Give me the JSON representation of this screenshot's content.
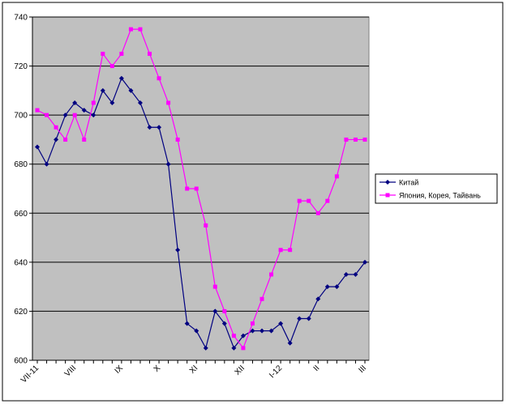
{
  "chart_data": {
    "type": "line",
    "categories": [
      "VII-11",
      null,
      null,
      null,
      "VIII",
      null,
      null,
      null,
      null,
      "IX",
      null,
      null,
      null,
      "X",
      null,
      null,
      null,
      "XI",
      null,
      null,
      null,
      null,
      "XII",
      null,
      null,
      null,
      "I-12",
      null,
      null,
      null,
      "II",
      null,
      null,
      null,
      null,
      "III"
    ],
    "series": [
      {
        "name": "Китай",
        "color": "#000080",
        "marker": "diamond",
        "values": [
          687,
          680,
          690,
          700,
          705,
          702,
          700,
          710,
          705,
          715,
          710,
          705,
          695,
          695,
          680,
          645,
          615,
          612,
          605,
          620,
          615,
          605,
          610,
          612,
          612,
          612,
          615,
          607,
          617,
          617,
          625,
          630,
          630,
          635,
          635,
          640
        ]
      },
      {
        "name": "Япония, Корея, Тайвань",
        "color": "#ff00ff",
        "marker": "square",
        "values": [
          702,
          700,
          695,
          690,
          700,
          690,
          705,
          725,
          720,
          725,
          735,
          735,
          725,
          715,
          705,
          690,
          670,
          670,
          655,
          630,
          620,
          610,
          605,
          615,
          625,
          635,
          645,
          645,
          665,
          665,
          660,
          665,
          675,
          690,
          690,
          690
        ]
      }
    ],
    "ylim": [
      600,
      740
    ],
    "yticks": [
      600,
      620,
      640,
      660,
      680,
      700,
      720,
      740
    ],
    "grid": true,
    "legend": "right"
  }
}
